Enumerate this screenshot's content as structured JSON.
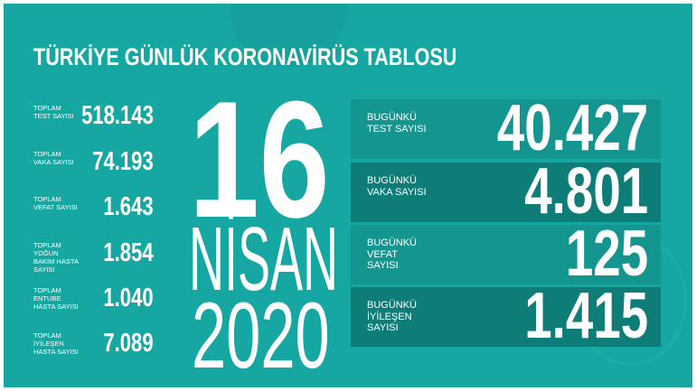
{
  "title": "TÜRKİYE GÜNLÜK KORONAVİRÜS TABLOSU",
  "date": {
    "day": "16",
    "month": "NİSAN",
    "year": "2020"
  },
  "totals": [
    {
      "label": "TOPLAM TEST SAYISI",
      "value": "518.143"
    },
    {
      "label": "TOPLAM VAKA SAYISI",
      "value": "74.193"
    },
    {
      "label": "TOPLAM VEFAT SAYISI",
      "value": "1.643"
    },
    {
      "label": "TOPLAM YOĞUN BAKIM HASTA SAYISI",
      "value": "1.854"
    },
    {
      "label": "TOPLAM ENTUBE HASTA SAYISI",
      "value": "1.040"
    },
    {
      "label": "TOPLAM İYİLEŞEN HASTA SAYISI",
      "value": "7.089"
    }
  ],
  "today": [
    {
      "label": "BUGÜNKÜ TEST SAYISI",
      "value": "40.427"
    },
    {
      "label": "BUGÜNKÜ VAKA SAYISI",
      "value": "4.801"
    },
    {
      "label": "BUGÜNKÜ VEFAT SAYISI",
      "value": "125"
    },
    {
      "label": "BUGÜNKÜ İYİLEŞEN SAYISI",
      "value": "1.415"
    }
  ],
  "colors": {
    "background": "#17a7a3",
    "box_light": "#15958f",
    "box_dark": "#0e7d78",
    "text": "#ffffff"
  }
}
